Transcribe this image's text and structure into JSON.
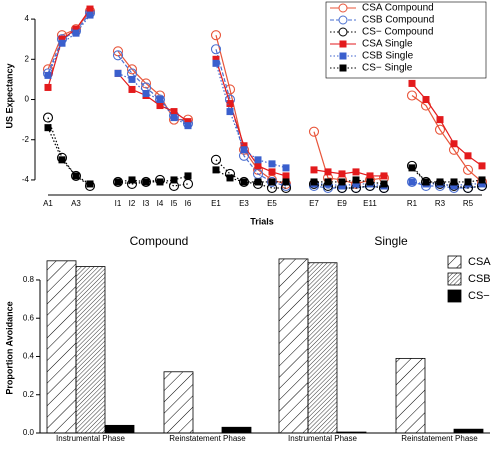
{
  "chart_data": [
    {
      "type": "line",
      "ylabel": "US Expectancy",
      "xlabel": "Trials",
      "legend": "upper right",
      "categories": [
        "A1",
        null,
        "A3",
        null,
        null,
        "I1",
        "I2",
        "I3",
        "I4",
        "I5",
        "I6",
        null,
        "E1",
        null,
        "E3",
        null,
        "E5",
        null,
        null,
        "E7",
        null,
        "E9",
        null,
        "E11",
        null,
        null,
        "R1",
        null,
        "R3",
        null,
        "R5",
        null
      ],
      "ylim": [
        -4.6,
        4.9
      ],
      "yticks": [
        -4,
        -2,
        0,
        2,
        4
      ],
      "series": [
        {
          "name": "CSA Compound",
          "color": "#e8553a",
          "marker": "open-circle",
          "dash": "solid",
          "values": [
            1.5,
            3.2,
            3.5,
            4.4,
            null,
            2.4,
            1.5,
            0.8,
            0.2,
            -1.0,
            -1.0,
            null,
            3.2,
            0.5,
            -2.5,
            -3.5,
            -4.0,
            -4.2,
            null,
            -1.6,
            -3.9,
            -4.0,
            -4.2,
            -4.0,
            -3.9,
            null,
            0.2,
            -0.3,
            -1.5,
            -2.5,
            -3.5,
            -4.1
          ]
        },
        {
          "name": "CSB Compound",
          "color": "#4a6fd0",
          "marker": "open-circle",
          "dash": "dashed",
          "values": [
            1.3,
            3.0,
            3.4,
            4.3,
            null,
            2.2,
            1.3,
            0.6,
            0.0,
            -0.8,
            -1.2,
            null,
            2.5,
            0.0,
            -2.8,
            -3.7,
            -4.1,
            -4.3,
            null,
            -4.3,
            -4.4,
            -4.4,
            -4.4,
            -4.3,
            -4.4,
            null,
            -4.1,
            -4.3,
            -4.3,
            -4.4,
            -4.4,
            -4.3
          ]
        },
        {
          "name": "CS− Compound",
          "color": "#000000",
          "marker": "open-circle",
          "dash": "dotted",
          "values": [
            -0.9,
            -2.9,
            -3.8,
            -4.3,
            null,
            -4.1,
            -4.2,
            -4.1,
            -4.0,
            -4.3,
            -4.2,
            null,
            -3.0,
            -3.7,
            -4.1,
            -4.2,
            -4.4,
            -4.4,
            null,
            -4.2,
            -4.3,
            -4.4,
            -4.4,
            -4.3,
            -4.4,
            null,
            -3.3,
            -4.1,
            -4.2,
            -4.3,
            -4.4,
            -4.3
          ]
        },
        {
          "name": "CSA Single",
          "color": "#e31a1c",
          "marker": "square",
          "dash": "solid",
          "values": [
            0.6,
            3.0,
            3.5,
            4.5,
            null,
            1.3,
            0.5,
            0.2,
            -0.3,
            -0.6,
            -1.1,
            null,
            2.0,
            -0.2,
            -2.3,
            -3.3,
            -3.6,
            -3.8,
            null,
            -3.5,
            -3.6,
            -3.7,
            -3.6,
            -3.8,
            -3.8,
            null,
            0.8,
            0.0,
            -1.0,
            -2.2,
            -2.8,
            -3.3
          ]
        },
        {
          "name": "CSB Single",
          "color": "#3a5fcd",
          "marker": "square",
          "dash": "dotted",
          "values": [
            1.2,
            2.8,
            3.3,
            4.2,
            null,
            1.3,
            1.0,
            0.3,
            0.0,
            -0.9,
            -1.3,
            null,
            1.8,
            -0.6,
            -2.5,
            -3.0,
            -3.2,
            -3.4,
            null,
            -4.2,
            -4.2,
            -4.3,
            -4.2,
            -4.2,
            -4.3,
            null,
            -4.1,
            -4.2,
            -4.2,
            -4.3,
            -4.2,
            -4.2
          ]
        },
        {
          "name": "CS− Single",
          "color": "#000000",
          "marker": "square",
          "dash": "dotted",
          "values": [
            -1.4,
            -3.0,
            -3.8,
            -4.2,
            null,
            -4.1,
            -4.0,
            -4.1,
            -4.1,
            -4.0,
            -3.8,
            null,
            -3.5,
            -3.9,
            -4.1,
            -4.1,
            -4.1,
            -4.1,
            null,
            -4.1,
            -4.1,
            -4.1,
            -4.0,
            -4.1,
            -4.2,
            null,
            -3.4,
            -4.1,
            -4.1,
            -4.1,
            -4.1,
            -4.0
          ]
        }
      ]
    },
    {
      "type": "grouped-bar",
      "ylabel": "Proportion Avoidance",
      "legend": "upper right",
      "panels": [
        "Compound",
        "Single"
      ],
      "categories": [
        "Instrumental Phase",
        "Reinstatement Phase"
      ],
      "ylim": [
        0,
        0.92
      ],
      "yticks": [
        {
          "value": 0,
          "label": "0.0"
        },
        {
          "value": 0.2,
          "label": "0.2"
        },
        {
          "value": 0.4,
          "label": "0.4"
        },
        {
          "value": 0.6,
          "label": "0.6"
        },
        {
          "value": 0.8,
          "label": "0.8"
        }
      ],
      "series": [
        {
          "name": "CSA",
          "color": "#000000",
          "hatch": "sparse",
          "values": [
            [
              0.9,
              0.32
            ],
            [
              0.91,
              0.39
            ]
          ]
        },
        {
          "name": "CSB",
          "color": "#000000",
          "hatch": "dense",
          "values": [
            [
              0.87,
              0
            ],
            [
              0.89,
              0
            ]
          ]
        },
        {
          "name": "CS−",
          "color": "#000000",
          "hatch": "none",
          "values": [
            [
              0.04,
              0.03
            ],
            [
              0.005,
              0.02
            ]
          ]
        }
      ]
    }
  ]
}
